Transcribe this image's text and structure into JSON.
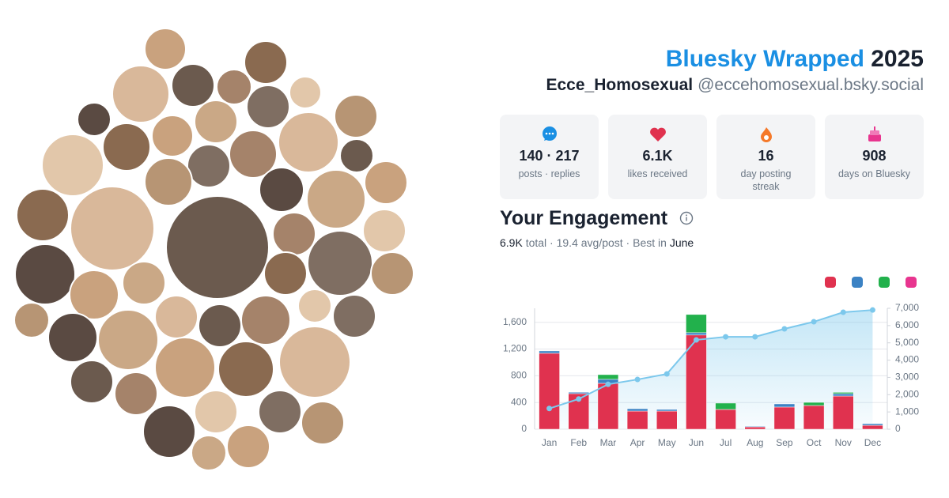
{
  "header": {
    "title": "Bluesky Wrapped",
    "year": "2025",
    "display_name": "Ecce_Homosexual",
    "handle": "@eccehomosexual.bsky.social"
  },
  "stats": [
    {
      "value": "140 · 217",
      "label": "posts · replies"
    },
    {
      "value": "6.1K",
      "label": "likes received"
    },
    {
      "value": "16",
      "label": "day posting streak"
    },
    {
      "value": "908",
      "label": "days on Bluesky"
    }
  ],
  "engagement": {
    "title": "Your Engagement",
    "total": "6.9K",
    "middle": "total · 19.4 avg/post · Best in",
    "best": "June"
  },
  "chart_data": {
    "type": "bar",
    "categories": [
      "Jan",
      "Feb",
      "Mar",
      "Apr",
      "May",
      "Jun",
      "Jul",
      "Aug",
      "Sep",
      "Oct",
      "Nov",
      "Dec"
    ],
    "series": [
      {
        "color": "#e0324f",
        "values": [
          1137,
          533,
          687,
          272,
          272,
          1410,
          296,
          35,
          332,
          355,
          497,
          59
        ]
      },
      {
        "color": "#3b82c4",
        "values": [
          35,
          20,
          60,
          35,
          24,
          35,
          0,
          10,
          47,
          0,
          35,
          24
        ]
      },
      {
        "color": "#22b14c",
        "values": [
          0,
          0,
          70,
          0,
          0,
          272,
          95,
          0,
          0,
          47,
          20,
          0
        ]
      },
      {
        "color": "#e8358f",
        "values": [
          0,
          0,
          0,
          0,
          0,
          0,
          0,
          0,
          0,
          0,
          0,
          0
        ]
      },
      {
        "type": "line",
        "axis": "y2",
        "color": "#7cc8ec",
        "values": [
          1200,
          1750,
          2600,
          2880,
          3200,
          5170,
          5350,
          5350,
          5810,
          6220,
          6770,
          6900
        ]
      }
    ],
    "ylim": [
      0,
      1810
    ],
    "yticks": [
      0,
      400,
      800,
      {
        "value": 1200,
        "label": "1,200"
      },
      {
        "value": 1600,
        "label": "1,600"
      }
    ],
    "y2lim": [
      0,
      7000
    ],
    "y2ticks": [
      0,
      {
        "value": 1000,
        "label": "1,000"
      },
      {
        "value": 2000,
        "label": "2,000"
      },
      {
        "value": 3000,
        "label": "3,000"
      },
      {
        "value": 4000,
        "label": "4,000"
      },
      {
        "value": 5000,
        "label": "5,000"
      },
      {
        "value": 6000,
        "label": "6,000"
      },
      {
        "value": 7000,
        "label": "7,000"
      }
    ],
    "grid": true
  }
}
